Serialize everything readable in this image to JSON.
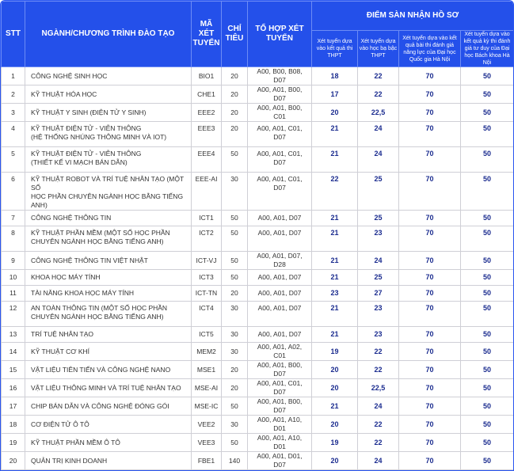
{
  "header": {
    "stt": "STT",
    "program": "NGÀNH/CHƯƠNG TRÌNH ĐÀO TẠO",
    "code": "MÃ XÉT TUYỂN",
    "quota": "CHỈ TIÊU",
    "combos": "TỔ HỢP XÉT TUYỂN",
    "threshold": "ĐIỂM SÀN NHẬN HỒ SƠ",
    "sub": [
      "Xét tuyển dựa vào kết quả thi THPT",
      "Xét tuyển dựa vào học bạ bậc THPT",
      "Xét tuyển dựa vào kết quả bài thi đánh giá năng lực của Đại học Quốc gia Hà Nội",
      "Xét tuyển dựa vào kết quả kỳ thi đánh giá tư duy của Đại học Bách khoa Hà Nội"
    ]
  },
  "colors": {
    "header_bg": "#2450ea",
    "value_text": "#1b2c8f"
  },
  "rows": [
    {
      "stt": "1",
      "name": "CÔNG NGHỆ SINH HỌC",
      "code": "BIO1",
      "quota": "20",
      "combos": "A00, B00, B08, D07",
      "s1": "18",
      "s2": "22",
      "s3": "70",
      "s4": "50"
    },
    {
      "stt": "2",
      "name": "KỸ THUẬT HÓA HỌC",
      "code": "CHE1",
      "quota": "20",
      "combos": "A00, A01, B00, D07",
      "s1": "17",
      "s2": "22",
      "s3": "70",
      "s4": "50"
    },
    {
      "stt": "3",
      "name": "KỸ THUẬT Y SINH (ĐIỆN TỬ Y SINH)",
      "code": "EEE2",
      "quota": "20",
      "combos": "A00, A01, B00, C01",
      "s1": "20",
      "s2": "22,5",
      "s3": "70",
      "s4": "50"
    },
    {
      "stt": "4",
      "name": "KỸ THUẬT ĐIỆN TỬ - VIỄN THÔNG",
      "name2": "(HỆ THỐNG NHÚNG THÔNG MINH VÀ IOT)",
      "code": "EEE3",
      "quota": "20",
      "combos": "A00, A01, C01, D07",
      "s1": "21",
      "s2": "24",
      "s3": "70",
      "s4": "50"
    },
    {
      "stt": "5",
      "name": "KỸ THUẬT ĐIỆN TỬ - VIỄN THÔNG",
      "name2": "(THIẾT KẾ VI MẠCH BÁN DẪN)",
      "code": "EEE4",
      "quota": "50",
      "combos": "A00, A01, C01, D07",
      "s1": "21",
      "s2": "24",
      "s3": "70",
      "s4": "50"
    },
    {
      "stt": "6",
      "name": "KỸ THUẬT ROBOT VÀ TRÍ TUỆ NHÂN TẠO (MỘT SỐ",
      "name2": "HỌC PHẦN CHUYÊN NGÀNH HỌC BẰNG TIẾNG ANH)",
      "code": "EEE-AI",
      "quota": "30",
      "combos": "A00, A01, C01, D07",
      "s1": "22",
      "s2": "25",
      "s3": "70",
      "s4": "50"
    },
    {
      "stt": "7",
      "name": "CÔNG NGHỆ THÔNG TIN",
      "code": "ICT1",
      "quota": "50",
      "combos": "A00, A01, D07",
      "s1": "21",
      "s2": "25",
      "s3": "70",
      "s4": "50"
    },
    {
      "stt": "8",
      "name": "KỸ THUẬT PHẦN MỀM (MỘT SỐ HỌC PHẦN",
      "name2": "CHUYÊN NGÀNH HỌC BẰNG TIẾNG ANH)",
      "code": "ICT2",
      "quota": "50",
      "combos": "A00, A01, D07",
      "s1": "21",
      "s2": "23",
      "s3": "70",
      "s4": "50"
    },
    {
      "stt": "9",
      "name": "CÔNG NGHỆ THÔNG TIN VIỆT NHẬT",
      "code": "ICT-VJ",
      "quota": "50",
      "combos": "A00, A01, D07, D28",
      "s1": "21",
      "s2": "24",
      "s3": "70",
      "s4": "50"
    },
    {
      "stt": "10",
      "name": "KHOA HỌC MÁY TÍNH",
      "code": "ICT3",
      "quota": "50",
      "combos": "A00, A01, D07",
      "s1": "21",
      "s2": "25",
      "s3": "70",
      "s4": "50"
    },
    {
      "stt": "11",
      "name": "TÀI NĂNG KHOA HỌC MÁY TÍNH",
      "code": "ICT-TN",
      "quota": "20",
      "combos": "A00, A01, D07",
      "s1": "23",
      "s2": "27",
      "s3": "70",
      "s4": "50"
    },
    {
      "stt": "12",
      "name": "AN TOÀN THÔNG TIN (MỘT SỐ HỌC PHẦN",
      "name2": "CHUYÊN NGÀNH HỌC BẰNG TIẾNG ANH)",
      "code": "ICT4",
      "quota": "30",
      "combos": "A00, A01, D07",
      "s1": "21",
      "s2": "23",
      "s3": "70",
      "s4": "50"
    },
    {
      "stt": "13",
      "name": "TRÍ TUỆ NHÂN TẠO",
      "code": "ICT5",
      "quota": "30",
      "combos": "A00, A01, D07",
      "s1": "21",
      "s2": "23",
      "s3": "70",
      "s4": "50"
    },
    {
      "stt": "14",
      "name": "KỸ THUẬT CƠ KHÍ",
      "code": "MEM2",
      "quota": "30",
      "combos": "A00, A01, A02, C01",
      "s1": "19",
      "s2": "22",
      "s3": "70",
      "s4": "50"
    },
    {
      "stt": "15",
      "name": "VẬT LIỆU TIÊN TIẾN VÀ CÔNG NGHỆ NANO",
      "code": "MSE1",
      "quota": "20",
      "combos": "A00, A01, B00, D07",
      "s1": "20",
      "s2": "22",
      "s3": "70",
      "s4": "50"
    },
    {
      "stt": "16",
      "name": "VẬT LIỆU THÔNG MINH VÀ TRÍ TUỆ NHÂN TẠO",
      "code": "MSE-AI",
      "quota": "20",
      "combos": "A00, A01, C01, D07",
      "s1": "20",
      "s2": "22,5",
      "s3": "70",
      "s4": "50"
    },
    {
      "stt": "17",
      "name": "CHIP BÁN DẪN VÀ CÔNG NGHỆ ĐÓNG GÓI",
      "code": "MSE-IC",
      "quota": "50",
      "combos": "A00, A01, B00, D07",
      "s1": "21",
      "s2": "24",
      "s3": "70",
      "s4": "50"
    },
    {
      "stt": "18",
      "name": "CƠ ĐIỆN TỬ Ô TÔ",
      "code": "VEE2",
      "quota": "30",
      "combos": "A00, A01, A10, D01",
      "s1": "20",
      "s2": "22",
      "s3": "70",
      "s4": "50"
    },
    {
      "stt": "19",
      "name": "KỸ THUẬT PHẦN MỀM Ô TÔ",
      "code": "VEE3",
      "quota": "50",
      "combos": "A00, A01, A10, D01",
      "s1": "19",
      "s2": "22",
      "s3": "70",
      "s4": "50"
    },
    {
      "stt": "20",
      "name": "QUẢN TRỊ KINH DOANH",
      "code": "FBE1",
      "quota": "140",
      "combos": "A00, A01, D01, D07",
      "s1": "20",
      "s2": "24",
      "s3": "70",
      "s4": "50"
    }
  ]
}
